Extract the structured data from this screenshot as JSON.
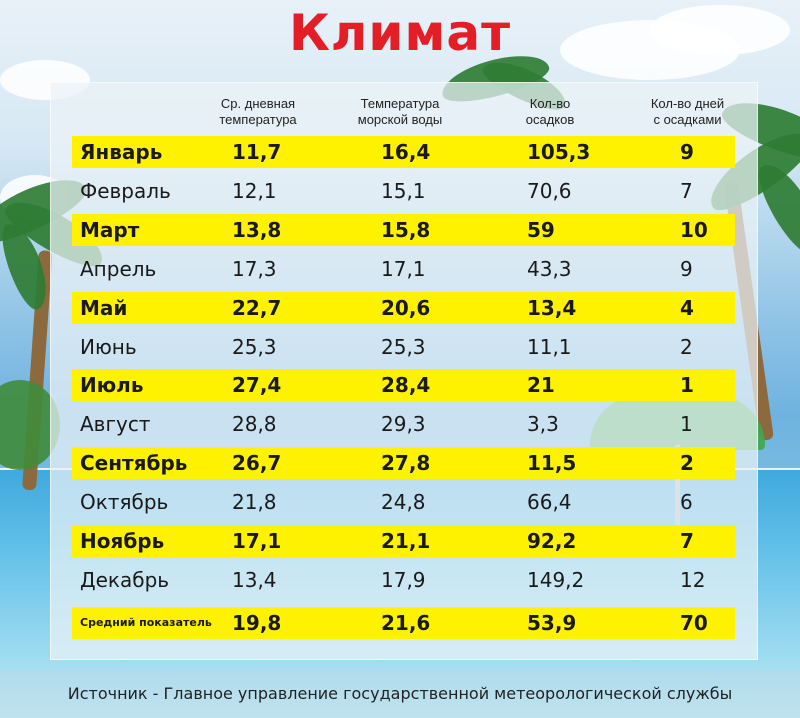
{
  "title": "Климат",
  "headers": {
    "day_temp": [
      "Ср. дневная",
      "температура"
    ],
    "sea_temp": [
      "Температура",
      "морской воды"
    ],
    "precip": [
      "Кол-во",
      "осадков"
    ],
    "rain_days": [
      "Кол-во дней",
      "с осадками"
    ]
  },
  "rows": [
    {
      "month": "Январь",
      "day_temp": "11,7",
      "sea_temp": "16,4",
      "precip": "105,3",
      "rain_days": "9",
      "highlight": true
    },
    {
      "month": "Февраль",
      "day_temp": "12,1",
      "sea_temp": "15,1",
      "precip": "70,6",
      "rain_days": "7",
      "highlight": false
    },
    {
      "month": "Март",
      "day_temp": "13,8",
      "sea_temp": "15,8",
      "precip": "59",
      "rain_days": "10",
      "highlight": true
    },
    {
      "month": "Апрель",
      "day_temp": "17,3",
      "sea_temp": "17,1",
      "precip": "43,3",
      "rain_days": "9",
      "highlight": false
    },
    {
      "month": "Май",
      "day_temp": "22,7",
      "sea_temp": "20,6",
      "precip": "13,4",
      "rain_days": "4",
      "highlight": true
    },
    {
      "month": "Июнь",
      "day_temp": "25,3",
      "sea_temp": "25,3",
      "precip": "11,1",
      "rain_days": "2",
      "highlight": false
    },
    {
      "month": "Июль",
      "day_temp": "27,4",
      "sea_temp": "28,4",
      "precip": "21",
      "rain_days": "1",
      "highlight": true
    },
    {
      "month": "Август",
      "day_temp": "28,8",
      "sea_temp": "29,3",
      "precip": "3,3",
      "rain_days": "1",
      "highlight": false
    },
    {
      "month": "Сентябрь",
      "day_temp": "26,7",
      "sea_temp": "27,8",
      "precip": "11,5",
      "rain_days": "2",
      "highlight": true
    },
    {
      "month": "Октябрь",
      "day_temp": "21,8",
      "sea_temp": "24,8",
      "precip": "66,4",
      "rain_days": "6",
      "highlight": false
    },
    {
      "month": "Ноябрь",
      "day_temp": "17,1",
      "sea_temp": "21,1",
      "precip": "92,2",
      "rain_days": "7",
      "highlight": true
    },
    {
      "month": "Декабрь",
      "day_temp": "13,4",
      "sea_temp": "17,9",
      "precip": "149,2",
      "rain_days": "12",
      "highlight": false
    }
  ],
  "average": {
    "label": "Средний показатель",
    "day_temp": "19,8",
    "sea_temp": "21,6",
    "precip": "53,9",
    "rain_days": "70"
  },
  "source": "Источник - Главное управление государственной метеорологической службы",
  "colors": {
    "title": "#e41e26",
    "highlight": "#fff200"
  }
}
